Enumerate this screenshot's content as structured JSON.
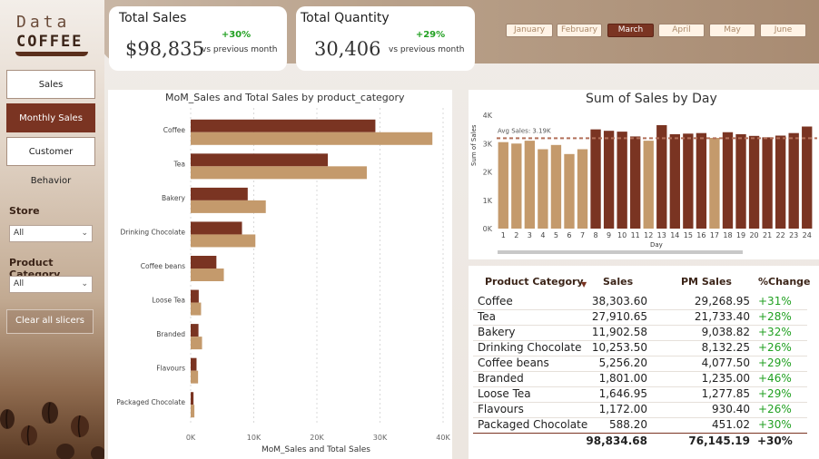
{
  "logo": {
    "line1": "Data",
    "line2": "COFFEE"
  },
  "nav": [
    {
      "label": "Sales",
      "active": false
    },
    {
      "label": "Monthly Sales",
      "active": true
    },
    {
      "label": "Customer Behavior",
      "active": false
    }
  ],
  "slicers": {
    "store": {
      "label": "Store",
      "value": "All"
    },
    "category": {
      "label": "Product Category",
      "value": "All"
    },
    "clear_label": "Clear all slicers"
  },
  "kpis": {
    "sales": {
      "title": "Total Sales",
      "value": "$98,835",
      "pct": "+30%",
      "vs": "vs previous month"
    },
    "quantity": {
      "title": "Total Quantity",
      "value": "30,406",
      "pct": "+29%",
      "vs": "vs previous month"
    }
  },
  "months": [
    "January",
    "February",
    "March",
    "April",
    "May",
    "June"
  ],
  "selected_month": "March",
  "colors": {
    "dark": "#7a3422",
    "light": "#c49a6c",
    "accent_green": "#21a021"
  },
  "bar_chart": {
    "title": "MoM_Sales and Total Sales by product_category",
    "xlabel": "MoM_Sales and Total Sales",
    "ticks": [
      "0K",
      "10K",
      "20K",
      "30K",
      "40K"
    ]
  },
  "day_chart": {
    "title": "Sum of Sales by Day",
    "ylabel": "Sum of Sales",
    "xlabel": "Day",
    "avg_label": "Avg Sales: 3.19K",
    "yticks": [
      "0K",
      "1K",
      "2K",
      "3K",
      "4K"
    ]
  },
  "chart_data": [
    {
      "type": "bar",
      "orientation": "horizontal",
      "title": "MoM_Sales and Total Sales by product_category",
      "xlabel": "MoM_Sales and Total Sales",
      "categories": [
        "Coffee",
        "Tea",
        "Bakery",
        "Drinking Chocolate",
        "Coffee beans",
        "Loose Tea",
        "Branded",
        "Flavours",
        "Packaged Chocolate"
      ],
      "series": [
        {
          "values": [
            29268.95,
            21733.4,
            9038.82,
            8132.25,
            4077.5,
            1277.85,
            1235.0,
            930.4,
            451.02
          ]
        },
        {
          "values": [
            38303.6,
            27910.65,
            11902.58,
            10253.5,
            5256.2,
            1646.95,
            1801.0,
            1172.0,
            588.2
          ]
        }
      ],
      "xlim": [
        0,
        40000
      ],
      "grid": true
    },
    {
      "type": "bar",
      "title": "Sum of Sales by Day",
      "xlabel": "Day",
      "ylabel": "Sum of Sales",
      "categories": [
        "1",
        "2",
        "3",
        "4",
        "5",
        "6",
        "7",
        "8",
        "9",
        "10",
        "11",
        "12",
        "13",
        "14",
        "15",
        "16",
        "17",
        "18",
        "19",
        "20",
        "21",
        "22",
        "23",
        "24"
      ],
      "values": [
        3050,
        3000,
        3100,
        2800,
        2950,
        2630,
        2800,
        3500,
        3450,
        3420,
        3250,
        3100,
        3650,
        3330,
        3350,
        3370,
        3200,
        3400,
        3330,
        3270,
        3220,
        3280,
        3370,
        3600
      ],
      "avg_line": 3190,
      "ylim": [
        0,
        4000
      ]
    }
  ],
  "table": {
    "headers": [
      "Product Category",
      "Sales",
      "PM Sales",
      "%Change"
    ],
    "rows": [
      [
        "Coffee",
        "38,303.60",
        "29,268.95",
        "+31%"
      ],
      [
        "Tea",
        "27,910.65",
        "21,733.40",
        "+28%"
      ],
      [
        "Bakery",
        "11,902.58",
        "9,038.82",
        "+32%"
      ],
      [
        "Drinking Chocolate",
        "10,253.50",
        "8,132.25",
        "+26%"
      ],
      [
        "Coffee beans",
        "5,256.20",
        "4,077.50",
        "+29%"
      ],
      [
        "Branded",
        "1,801.00",
        "1,235.00",
        "+46%"
      ],
      [
        "Loose Tea",
        "1,646.95",
        "1,277.85",
        "+29%"
      ],
      [
        "Flavours",
        "1,172.00",
        "930.40",
        "+26%"
      ],
      [
        "Packaged Chocolate",
        "588.20",
        "451.02",
        "+30%"
      ]
    ],
    "total": [
      "",
      "98,834.68",
      "76,145.19",
      "+30%"
    ]
  }
}
